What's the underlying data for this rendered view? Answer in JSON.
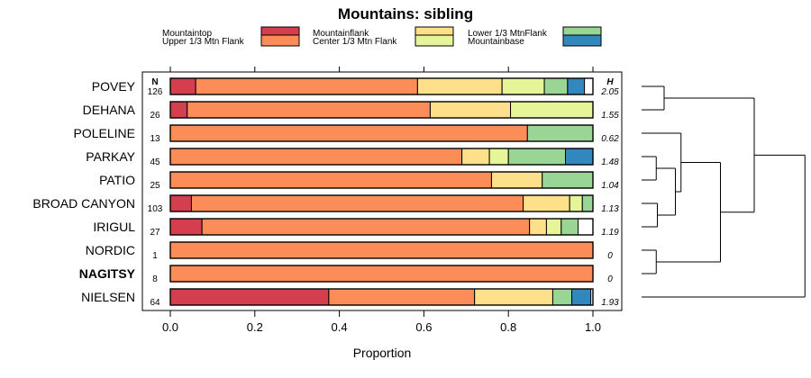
{
  "chart_data": {
    "type": "bar",
    "orientation": "horizontal",
    "stacked": true,
    "title": "Mountains: sibling",
    "xlabel": "Proportion",
    "xlim": [
      0,
      1
    ],
    "xticks": [
      "0.0",
      "0.2",
      "0.4",
      "0.6",
      "0.8",
      "1.0"
    ],
    "n_header": "N",
    "h_header": "H",
    "legend": [
      {
        "name": "Mountaintop",
        "color": "#d53e4f"
      },
      {
        "name": "Upper 1/3 Mtn Flank",
        "color": "#fc8d59"
      },
      {
        "name": "Mountainflank",
        "color": "#fee08b"
      },
      {
        "name": "Center 1/3 Mtn Flank",
        "color": "#e6f598"
      },
      {
        "name": "Lower 1/3 MtnFlank",
        "color": "#99d594"
      },
      {
        "name": "Mountainbase",
        "color": "#3288bd"
      }
    ],
    "categories": [
      "POVEY",
      "DEHANA",
      "POLELINE",
      "PARKAY",
      "PATIO",
      "BROAD CANYON",
      "IRIGUL",
      "NORDIC",
      "NAGITSY",
      "NIELSEN"
    ],
    "highlighted": [
      "NAGITSY"
    ],
    "n": [
      "126",
      "26",
      "13",
      "45",
      "25",
      "103",
      "27",
      "1",
      "8",
      "64"
    ],
    "h": [
      "2.05",
      "1.55",
      "0.62",
      "1.48",
      "1.04",
      "1.13",
      "1.19",
      "0",
      "0",
      "1.93"
    ],
    "series": [
      {
        "name": "Mountaintop",
        "values": [
          0.06,
          0.04,
          0,
          0,
          0,
          0.05,
          0.075,
          0,
          0,
          0.375
        ]
      },
      {
        "name": "Upper 1/3 Mtn Flank",
        "values": [
          0.525,
          0.575,
          0.845,
          0.69,
          0.76,
          0.785,
          0.775,
          1.0,
          1.0,
          0.345
        ]
      },
      {
        "name": "Mountainflank",
        "values": [
          0.2,
          0.19,
          0,
          0.065,
          0.12,
          0.11,
          0.04,
          0,
          0,
          0.185
        ]
      },
      {
        "name": "Center 1/3 Mtn Flank",
        "values": [
          0.1,
          0.195,
          0,
          0.045,
          0,
          0.03,
          0.035,
          0,
          0,
          0
        ]
      },
      {
        "name": "Lower 1/3 MtnFlank",
        "values": [
          0.055,
          0,
          0.155,
          0.135,
          0.12,
          0.025,
          0.04,
          0,
          0,
          0.045
        ]
      },
      {
        "name": "Mountainbase",
        "values": [
          0.04,
          0,
          0,
          0.065,
          0,
          0,
          0,
          0,
          0,
          0.045
        ]
      }
    ],
    "dendrogram": {
      "leaf_order": [
        "POVEY",
        "DEHANA",
        "POLELINE",
        "PARKAY",
        "PATIO",
        "BROAD CANYON",
        "IRIGUL",
        "NORDIC",
        "NAGITSY",
        "NIELSEN"
      ],
      "merges": [
        {
          "a": 0,
          "b": 1,
          "height": 0.2
        },
        {
          "a": 7,
          "b": 8,
          "height": 0.13
        },
        {
          "a": 3,
          "b": 4,
          "height": 0.13
        },
        {
          "a": 5,
          "b": 6,
          "height": 0.14
        },
        {
          "a": "m3",
          "b": "m4",
          "height": 0.3
        },
        {
          "a": 2,
          "b": "m5",
          "height": 0.35
        },
        {
          "a": "m6",
          "b": "m2",
          "height": 0.7
        },
        {
          "a": "m1",
          "b": "m7",
          "height": 1.0
        },
        {
          "a": "m8",
          "b": 9,
          "height": 1.45
        }
      ]
    }
  }
}
